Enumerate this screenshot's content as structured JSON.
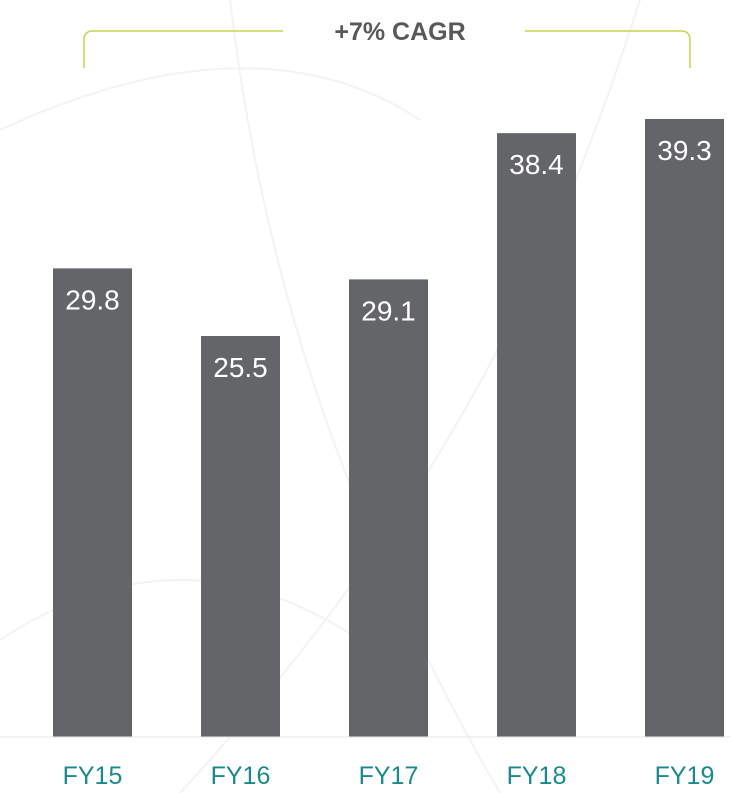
{
  "colors": {
    "bar": "#636569",
    "bar_label": "#ffffff",
    "category_label": "#1a8a8c",
    "bracket": "#c8d34a",
    "cagr_text": "#595959",
    "baseline": "#e6e6e6"
  },
  "annotation": {
    "cagr_label": "+7% CAGR"
  },
  "chart_data": {
    "type": "bar",
    "categories": [
      "FY15",
      "FY16",
      "FY17",
      "FY18",
      "FY19"
    ],
    "values": [
      29.8,
      25.5,
      29.1,
      38.4,
      39.3
    ],
    "value_labels": [
      "29.8",
      "25.5",
      "29.1",
      "38.4",
      "39.3"
    ],
    "title": "",
    "xlabel": "",
    "ylabel": "",
    "ylim": [
      0,
      39.3
    ],
    "grid": false,
    "legend": "none"
  }
}
